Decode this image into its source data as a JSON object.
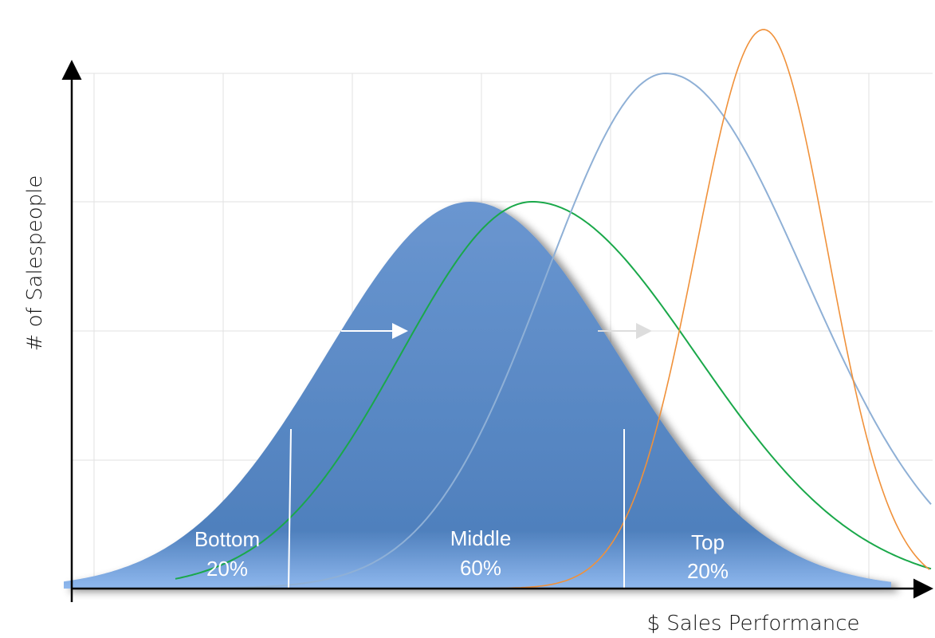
{
  "axes": {
    "y_label": "# of Salespeople",
    "x_label": "$ Sales Performance"
  },
  "segments": [
    {
      "name": "Bottom",
      "share": "20%"
    },
    {
      "name": "Middle",
      "share": "60%"
    },
    {
      "name": "Top",
      "share": "20%"
    }
  ]
}
